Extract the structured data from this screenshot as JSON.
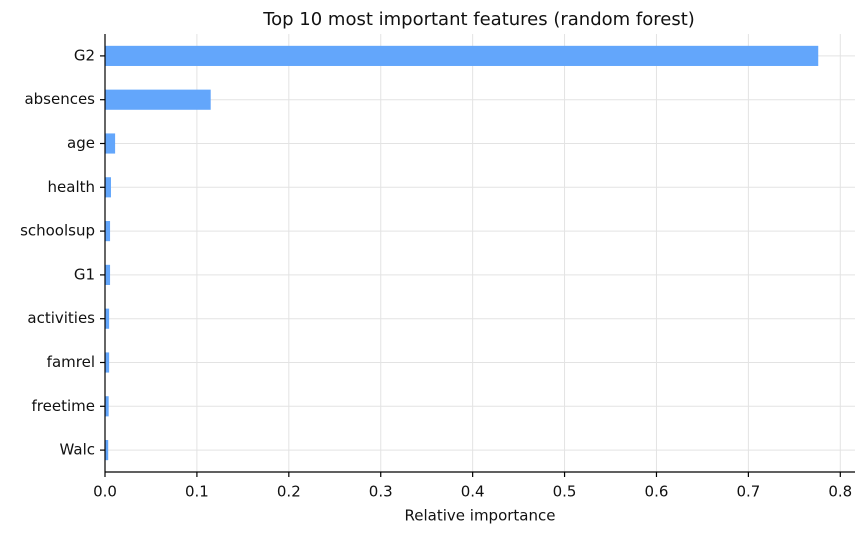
{
  "chart_data": {
    "type": "barh",
    "title": "Top 10 most important features (random forest)",
    "xlabel": "Relative importance",
    "categories": [
      "G2",
      "absences",
      "age",
      "health",
      "schoolsup",
      "G1",
      "activities",
      "famrel",
      "freetime",
      "Walc"
    ],
    "values": [
      0.776,
      0.115,
      0.011,
      0.0065,
      0.0055,
      0.0055,
      0.0045,
      0.0045,
      0.004,
      0.0035
    ],
    "color": "#63a6fb",
    "xlim": [
      0,
      0.816
    ],
    "xticks": [
      {
        "value": 0,
        "label": "0.0"
      },
      0.1,
      0.2,
      0.3,
      0.4,
      0.5,
      0.6,
      0.7,
      0.8
    ],
    "grid": true
  }
}
